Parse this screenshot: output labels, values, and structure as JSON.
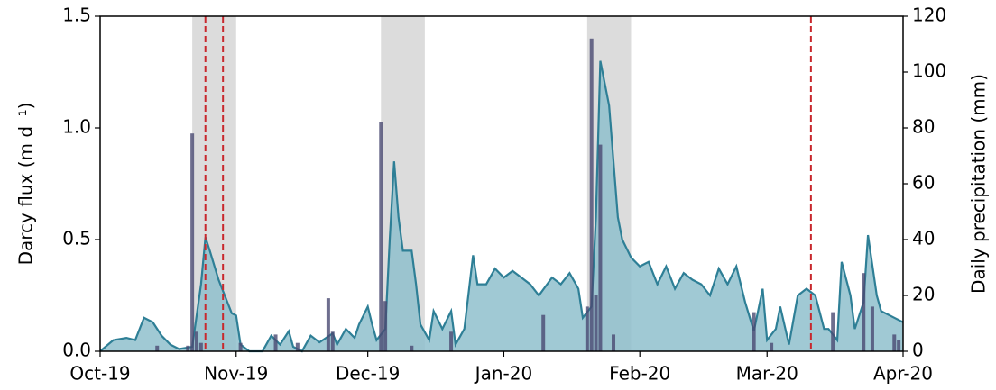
{
  "chart_data": {
    "type": "area-bar",
    "y_label": "Darcy flux (m d⁻¹)",
    "y2_label": "Daily precipitation (mm)",
    "xlim": [
      0,
      183
    ],
    "xticks": [
      {
        "value": 0,
        "label": "Oct-19"
      },
      {
        "value": 31,
        "label": "Nov-19"
      },
      {
        "value": 61,
        "label": "Dec-19"
      },
      {
        "value": 92,
        "label": "Jan-20"
      },
      {
        "value": 123,
        "label": "Feb-20"
      },
      {
        "value": 152,
        "label": "Mar-20"
      },
      {
        "value": 183,
        "label": "Apr-20"
      }
    ],
    "ylim": [
      0,
      1.5
    ],
    "yticks": [
      {
        "value": 0,
        "label": "0.0"
      },
      0.5,
      {
        "value": 1,
        "label": "1.0"
      },
      1.5
    ],
    "y2lim": [
      0,
      120
    ],
    "y2ticks": [
      0,
      20,
      40,
      60,
      80,
      100,
      120
    ],
    "spans": [
      [
        21,
        31
      ],
      [
        64,
        74
      ],
      [
        111,
        121
      ]
    ],
    "span_color": "#dcdcdc",
    "vlines": [
      24,
      28,
      162
    ],
    "vline_color": "#c8282d",
    "series": [
      {
        "type": "area",
        "color": "#2e7f96",
        "fill": "#8fc0cd",
        "x": [
          0,
          3,
          6,
          8,
          10,
          12,
          14,
          16,
          18,
          21,
          23,
          24,
          25,
          27,
          30,
          31,
          32,
          34,
          37,
          39,
          41,
          43,
          44,
          46,
          48,
          50,
          53,
          54,
          56,
          58,
          59,
          61,
          62,
          63,
          65,
          66,
          67,
          68,
          69,
          71,
          72,
          73,
          75,
          76,
          78,
          80,
          81,
          83,
          85,
          86,
          88,
          90,
          92,
          94,
          96,
          98,
          100,
          103,
          105,
          107,
          109,
          110,
          112,
          113,
          114,
          116,
          118,
          119,
          121,
          123,
          125,
          127,
          129,
          131,
          133,
          135,
          137,
          139,
          141,
          143,
          145,
          147,
          149,
          151,
          152,
          154,
          155,
          157,
          159,
          161,
          163,
          165,
          166,
          168,
          169,
          171,
          172,
          174,
          175,
          177,
          178,
          181,
          183
        ],
        "values": [
          0,
          0.05,
          0.06,
          0.05,
          0.15,
          0.13,
          0.07,
          0.03,
          0.01,
          0.02,
          0.3,
          0.51,
          0.45,
          0.32,
          0.17,
          0.16,
          0.03,
          0,
          0,
          0.07,
          0.03,
          0.09,
          0.02,
          0,
          0.07,
          0.04,
          0.08,
          0.03,
          0.1,
          0.06,
          0.12,
          0.2,
          0.12,
          0.05,
          0.1,
          0.5,
          0.85,
          0.6,
          0.45,
          0.45,
          0.3,
          0.12,
          0.05,
          0.18,
          0.1,
          0.18,
          0.03,
          0.1,
          0.43,
          0.3,
          0.3,
          0.37,
          0.33,
          0.36,
          0.33,
          0.3,
          0.25,
          0.33,
          0.3,
          0.35,
          0.28,
          0.15,
          0.2,
          0.6,
          1.3,
          1.1,
          0.6,
          0.5,
          0.42,
          0.38,
          0.4,
          0.3,
          0.38,
          0.28,
          0.35,
          0.32,
          0.3,
          0.25,
          0.37,
          0.3,
          0.38,
          0.22,
          0.09,
          0.28,
          0.05,
          0.1,
          0.2,
          0.03,
          0.25,
          0.28,
          0.25,
          0.1,
          0.1,
          0.05,
          0.4,
          0.25,
          0.1,
          0.22,
          0.52,
          0.25,
          0.18,
          0.15,
          0.13
        ]
      },
      {
        "type": "bar",
        "axis": "y2",
        "color": "#4a4a72",
        "x": [
          13,
          20,
          21,
          22,
          23,
          32,
          40,
          45,
          52,
          53,
          64,
          65,
          71,
          80,
          101,
          111,
          112,
          113,
          114,
          117,
          149,
          153,
          167,
          174,
          176,
          181,
          182
        ],
        "values": [
          2,
          2,
          78,
          7,
          3,
          3,
          6,
          3,
          19,
          7,
          82,
          18,
          2,
          7,
          13,
          16,
          112,
          20,
          74,
          6,
          14,
          3,
          14,
          28,
          16,
          6,
          4
        ]
      }
    ]
  }
}
